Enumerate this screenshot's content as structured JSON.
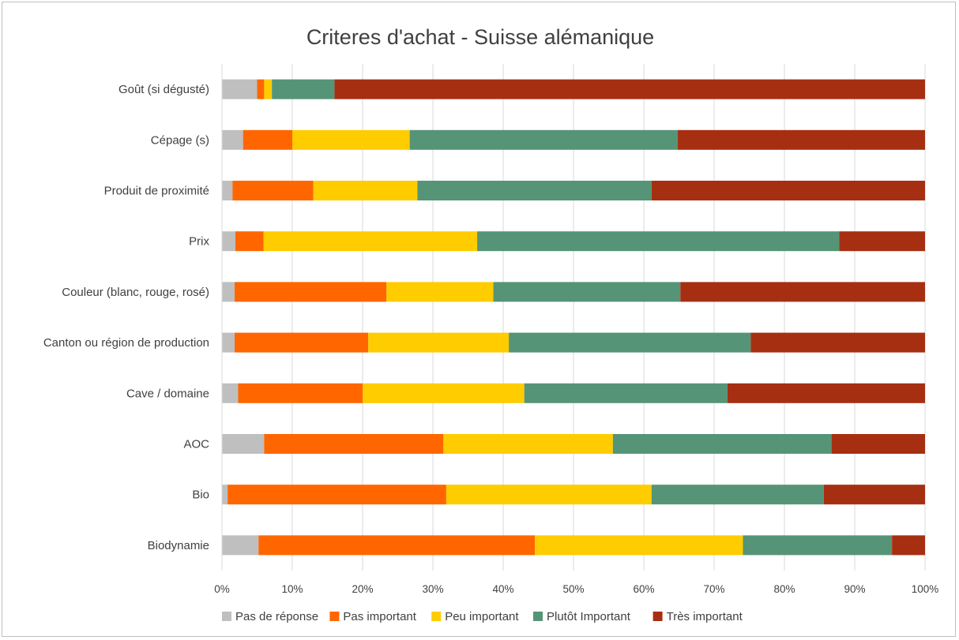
{
  "chart_data": {
    "type": "bar",
    "orientation": "horizontal",
    "stacked": true,
    "percent_stacked": true,
    "title": "Criteres d'achat - Suisse alémanique",
    "xlabel": "",
    "ylabel": "",
    "xlim": [
      0,
      100
    ],
    "x_ticks": [
      "0%",
      "10%",
      "20%",
      "30%",
      "40%",
      "50%",
      "60%",
      "70%",
      "80%",
      "90%",
      "100%"
    ],
    "grid": "vertical",
    "legend_position": "bottom",
    "categories": [
      "Goût (si dégusté)",
      "Cépage (s)",
      "Produit de proximité",
      "Prix",
      "Couleur (blanc, rouge, rosé)",
      "Canton ou région de production",
      "Cave / domaine",
      "AOC",
      "Bio",
      "Biodynamie"
    ],
    "series": [
      {
        "name": "Pas de réponse",
        "color": "#bfbfbf",
        "values": [
          5.0,
          3.0,
          1.5,
          1.9,
          1.8,
          1.8,
          2.3,
          6.0,
          0.8,
          5.2
        ]
      },
      {
        "name": "Pas important",
        "color": "#ff6600",
        "values": [
          1.0,
          7.0,
          11.5,
          4.0,
          21.6,
          19.0,
          17.7,
          25.5,
          31.1,
          39.3
        ]
      },
      {
        "name": "Peu important",
        "color": "#ffcc00",
        "values": [
          1.1,
          16.7,
          14.8,
          30.4,
          15.2,
          20.0,
          23.0,
          24.1,
          29.2,
          29.6
        ]
      },
      {
        "name": "Plutôt Important",
        "color": "#559477",
        "values": [
          8.9,
          38.1,
          33.3,
          51.5,
          26.6,
          34.4,
          28.9,
          31.1,
          24.5,
          21.2
        ]
      },
      {
        "name": "Très important",
        "color": "#a62f12",
        "values": [
          84.0,
          35.2,
          38.9,
          12.2,
          34.8,
          24.8,
          28.1,
          13.3,
          14.4,
          4.7
        ]
      }
    ]
  }
}
